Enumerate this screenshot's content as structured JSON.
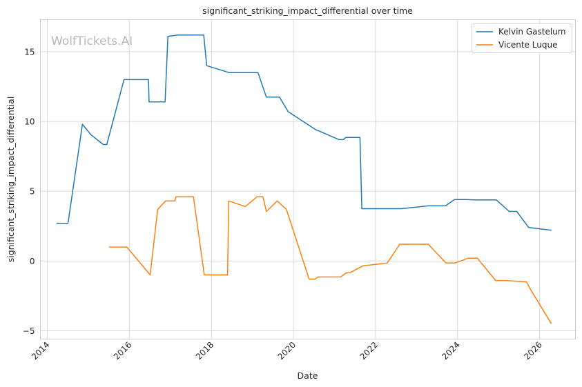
{
  "chart_data": {
    "type": "line",
    "title": "significant_striking_impact_differential over time",
    "xlabel": "Date",
    "ylabel": "significant_striking_impact_differential",
    "watermark": "WolfTickets.AI",
    "xlim": [
      "2013-11-01",
      "2026-11-15"
    ],
    "ylim": [
      -5.6,
      17.3
    ],
    "x_ticks": [
      "2014",
      "2016",
      "2018",
      "2020",
      "2022",
      "2024",
      "2026"
    ],
    "y_ticks": [
      -5,
      0,
      5,
      10,
      15
    ],
    "grid": true,
    "legend_position": "top-right",
    "colors": {
      "Kelvin Gastelum": "#1f77b4",
      "Vicente Luque": "#ff7f0e",
      "grid": "#d9d9d9",
      "frame": "#cccccc"
    },
    "series": [
      {
        "name": "Kelvin Gastelum",
        "color": "#1f77b4",
        "points": [
          [
            "2014-03-25",
            2.7
          ],
          [
            "2014-07-05",
            2.7
          ],
          [
            "2014-11-10",
            9.8
          ],
          [
            "2015-01-25",
            9.05
          ],
          [
            "2015-05-15",
            8.35
          ],
          [
            "2015-06-15",
            8.35
          ],
          [
            "2015-11-15",
            13.0
          ],
          [
            "2016-06-20",
            13.0
          ],
          [
            "2016-06-25",
            11.4
          ],
          [
            "2016-11-15",
            11.4
          ],
          [
            "2016-12-10",
            16.1
          ],
          [
            "2017-03-10",
            16.2
          ],
          [
            "2017-10-25",
            16.2
          ],
          [
            "2017-11-20",
            14.0
          ],
          [
            "2018-06-10",
            13.5
          ],
          [
            "2019-02-20",
            13.5
          ],
          [
            "2019-05-05",
            11.75
          ],
          [
            "2019-08-30",
            11.75
          ],
          [
            "2019-11-15",
            10.7
          ],
          [
            "2020-07-20",
            9.4
          ],
          [
            "2020-08-20",
            9.3
          ],
          [
            "2021-02-10",
            8.7
          ],
          [
            "2021-03-20",
            8.7
          ],
          [
            "2021-04-10",
            8.85
          ],
          [
            "2021-08-15",
            8.85
          ],
          [
            "2021-09-01",
            3.75
          ],
          [
            "2022-08-20",
            3.75
          ],
          [
            "2023-04-15",
            3.95
          ],
          [
            "2023-09-15",
            3.95
          ],
          [
            "2023-12-05",
            4.4
          ],
          [
            "2024-03-20",
            4.4
          ],
          [
            "2024-05-20",
            4.38
          ],
          [
            "2024-12-10",
            4.38
          ],
          [
            "2025-04-05",
            3.55
          ],
          [
            "2025-06-10",
            3.55
          ],
          [
            "2025-09-25",
            2.4
          ],
          [
            "2026-04-15",
            2.2
          ]
        ]
      },
      {
        "name": "Vicente Luque",
        "color": "#ff7f0e",
        "points": [
          [
            "2015-07-05",
            1.0
          ],
          [
            "2015-12-10",
            1.0
          ],
          [
            "2016-07-05",
            -1.0
          ],
          [
            "2016-09-10",
            3.7
          ],
          [
            "2016-11-20",
            4.3
          ],
          [
            "2017-02-10",
            4.3
          ],
          [
            "2017-02-20",
            4.6
          ],
          [
            "2017-07-25",
            4.6
          ],
          [
            "2017-10-30",
            -1.0
          ],
          [
            "2018-05-25",
            -1.0
          ],
          [
            "2018-06-05",
            4.3
          ],
          [
            "2018-10-30",
            3.9
          ],
          [
            "2019-02-10",
            4.6
          ],
          [
            "2019-04-05",
            4.6
          ],
          [
            "2019-05-05",
            3.55
          ],
          [
            "2019-08-10",
            4.3
          ],
          [
            "2019-10-30",
            3.7
          ],
          [
            "2020-05-20",
            -1.3
          ],
          [
            "2020-07-15",
            -1.3
          ],
          [
            "2020-08-05",
            -1.15
          ],
          [
            "2021-02-25",
            -1.15
          ],
          [
            "2021-04-15",
            -0.85
          ],
          [
            "2021-05-15",
            -0.85
          ],
          [
            "2021-09-10",
            -0.35
          ],
          [
            "2022-04-15",
            -0.15
          ],
          [
            "2022-08-05",
            1.2
          ],
          [
            "2023-04-15",
            1.2
          ],
          [
            "2023-09-20",
            -0.15
          ],
          [
            "2023-12-10",
            -0.15
          ],
          [
            "2024-04-05",
            0.2
          ],
          [
            "2024-06-25",
            0.2
          ],
          [
            "2024-12-05",
            -1.4
          ],
          [
            "2025-03-05",
            -1.4
          ],
          [
            "2025-09-05",
            -1.5
          ],
          [
            "2025-10-15",
            -2.1
          ],
          [
            "2026-04-15",
            -4.5
          ]
        ]
      }
    ]
  }
}
